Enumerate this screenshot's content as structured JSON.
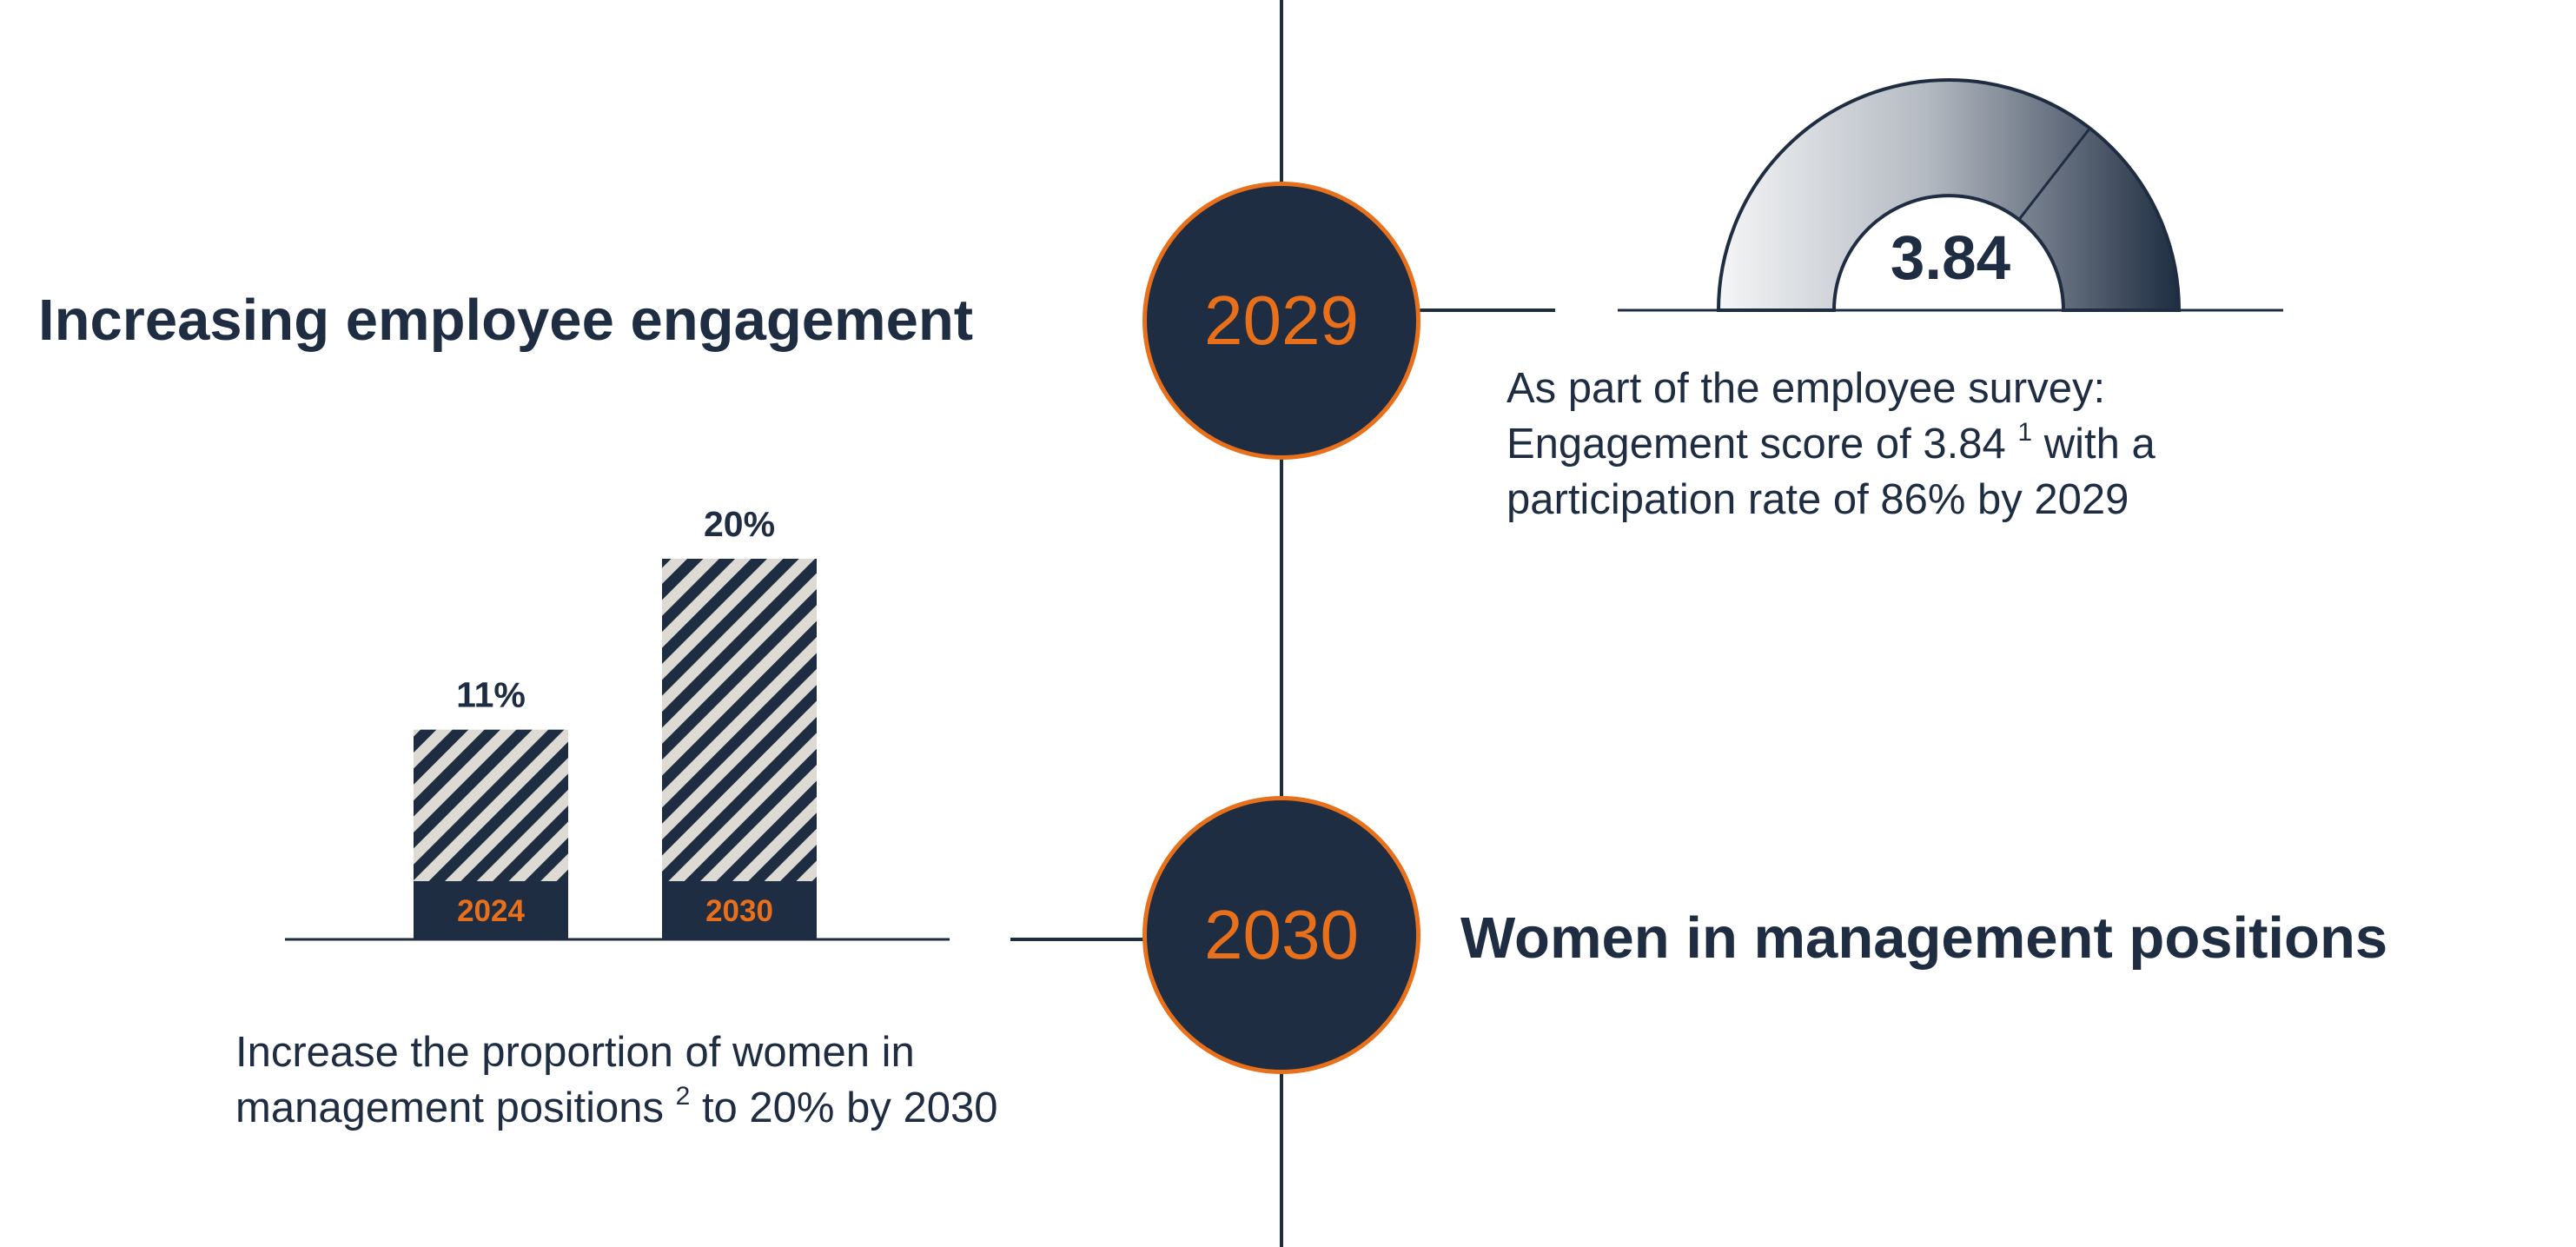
{
  "colors": {
    "navy": "#1f2d42",
    "orange": "#e8701a",
    "stripe_light": "#dcdad2",
    "white": "#ffffff"
  },
  "timeline": {
    "milestones": [
      {
        "year": "2029",
        "title": "Increasing employee engagement"
      },
      {
        "year": "2030",
        "title": "Women in management positions"
      }
    ]
  },
  "engagement": {
    "score_label": "3.84",
    "desc_line1": "As part of the employee survey:",
    "desc_line2_pre": "Engagement score of 3.84",
    "desc_line2_sup": "1",
    "desc_line2_post": " with a",
    "desc_line3": "participation rate of 86% by 2029"
  },
  "women": {
    "desc_line1": "Increase the proportion of women in",
    "desc_line2_pre": "management positions",
    "desc_line2_sup": "2",
    "desc_line2_post": " to 20% by 2030"
  },
  "chart_data": [
    {
      "type": "bar",
      "categories": [
        "2024",
        "2030"
      ],
      "values": [
        11,
        20
      ],
      "value_labels": [
        "11%",
        "20%"
      ],
      "ylim": [
        0,
        20
      ],
      "fill": "diagonal-stripes",
      "grid": false
    },
    {
      "type": "gauge",
      "value": 3.84,
      "value_label": "3.84"
    }
  ]
}
